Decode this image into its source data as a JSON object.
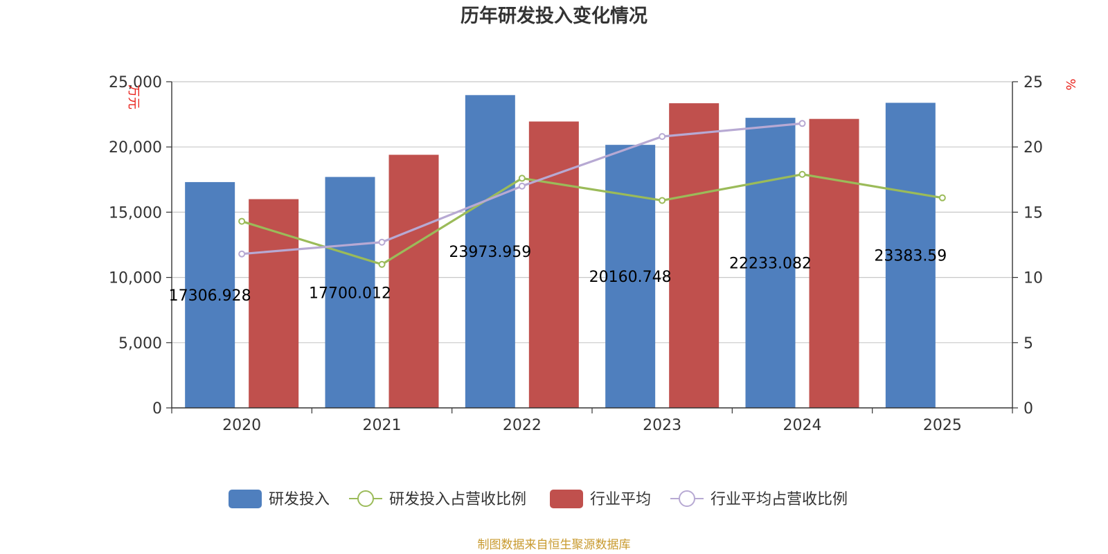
{
  "chart_data": {
    "type": "bar",
    "title": "历年研发投入变化情况",
    "categories": [
      "2020",
      "2021",
      "2022",
      "2023",
      "2024",
      "2025"
    ],
    "y_left": {
      "unit": "万元",
      "range": [
        0,
        25000
      ],
      "ticks": [
        "0",
        "5,000",
        "10,000",
        "15,000",
        "20,000",
        "25,000"
      ]
    },
    "y_right": {
      "unit": "%",
      "range": [
        0,
        25
      ],
      "ticks": [
        "0",
        "5",
        "10",
        "15",
        "20",
        "25"
      ]
    },
    "grid": true,
    "legend_position": "bottom",
    "series": [
      {
        "name": "研发投入",
        "type": "bar",
        "axis": "left",
        "color": "#4f7fbe",
        "values": [
          17306.928,
          17700.012,
          23973.959,
          20160.748,
          22233.082,
          23383.59
        ],
        "labels": [
          "17306.928",
          "17700.012",
          "23973.959",
          "20160.748",
          "22233.082",
          "23383.59"
        ]
      },
      {
        "name": "研发投入占营收比例",
        "type": "line",
        "axis": "right",
        "color": "#9bbb59",
        "values": [
          14.3,
          11.0,
          17.6,
          15.9,
          17.9,
          16.1
        ]
      },
      {
        "name": "行业平均",
        "type": "bar",
        "axis": "left",
        "color": "#c0504d",
        "values": [
          16000,
          19400,
          21950,
          23350,
          22150,
          null
        ]
      },
      {
        "name": "行业平均占营收比例",
        "type": "line",
        "axis": "right",
        "color": "#b7a9d3",
        "values": [
          11.8,
          12.7,
          17.0,
          20.8,
          21.8,
          null
        ]
      }
    ]
  },
  "source_text": "制图数据来自恒生聚源数据库"
}
